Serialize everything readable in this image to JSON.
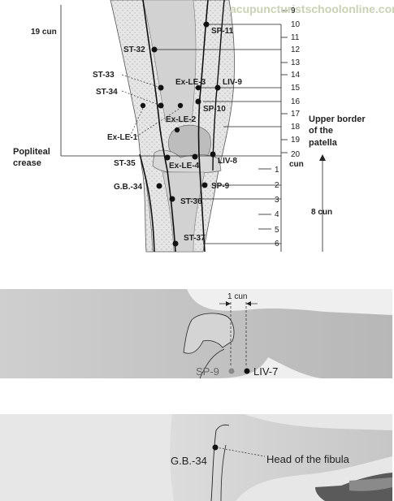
{
  "watermark": "acupuncturistschoolonline.com",
  "scale_top": {
    "label": "19 cun",
    "bottom_label": "cun",
    "ticks": [
      "9",
      "10",
      "11",
      "12",
      "13",
      "14",
      "15",
      "16",
      "17",
      "18",
      "19",
      "20"
    ]
  },
  "scale_bottom": {
    "label": "8 cun",
    "ticks": [
      "1",
      "2",
      "3",
      "4",
      "5",
      "6"
    ]
  },
  "side_labels": {
    "popliteal_line1": "Popliteal",
    "popliteal_line2": "crease",
    "patella_line1": "Upper border",
    "patella_line2": "of the",
    "patella_line3": "patella"
  },
  "points": {
    "sp11": "SP-11",
    "st32": "ST-32",
    "st33": "ST-33",
    "st34": "ST-34",
    "exle3": "Ex-LE-3",
    "liv9": "LIV-9",
    "sp10": "SP-10",
    "exle2": "Ex-LE-2",
    "exle1": "Ex-LE-1",
    "st35": "ST-35",
    "exle4": "Ex-LE-4",
    "liv8": "LIV-8",
    "gb34": "G.B.-34",
    "sp9": "SP-9",
    "st36": "ST-36",
    "st37": "ST-37"
  },
  "photo1": {
    "measure": "1 cun",
    "sp9": "SP-9",
    "liv7": "LIV-7"
  },
  "photo2": {
    "gb34": "G.B.-34",
    "fibula": "Head of the fibula"
  }
}
